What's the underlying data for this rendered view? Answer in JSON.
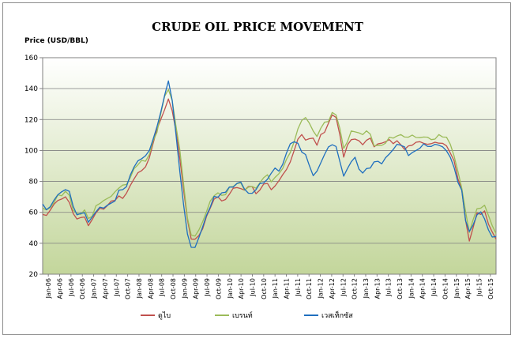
{
  "chart_data": {
    "type": "line",
    "title": "CRUDE OIL PRICE MOVEMENT",
    "ylabel": "Price (USD/BBL)",
    "xlabel": "",
    "ylim": [
      20,
      160
    ],
    "yticks": [
      20,
      40,
      60,
      80,
      100,
      120,
      140,
      160
    ],
    "grid": true,
    "legend_position": "bottom",
    "xtick_labels": [
      "Jan-06",
      "Apr-06",
      "Jul-06",
      "Oct-06",
      "Jan-07",
      "Apr-07",
      "Jul-07",
      "Oct-07",
      "Jan-08",
      "Apr-08",
      "Jul-08",
      "Oct-08",
      "Jan-09",
      "Apr-09",
      "Jul-09",
      "Oct-09",
      "Jan-10",
      "Apr-10",
      "Jul-10",
      "Oct-10",
      "Jan-11",
      "Apr-11",
      "Jul-11",
      "Oct-11",
      "Jan-12",
      "Apr-12",
      "Jul-12",
      "Oct-12",
      "Jan-13",
      "Apr-13",
      "Jul-13",
      "Oct-13",
      "Jan-14",
      "Apr-14",
      "Jul-14",
      "Oct-14",
      "Jan-15",
      "Apr-15",
      "Jul-15",
      "Oct-15"
    ],
    "x": [
      0,
      1,
      2,
      3,
      4,
      5,
      6,
      7,
      8,
      9,
      10,
      11,
      12,
      13,
      14,
      15,
      16,
      17,
      18,
      19,
      20,
      21,
      22,
      23,
      24,
      25,
      26,
      27,
      28,
      29,
      30,
      31,
      32,
      33,
      34,
      35,
      36,
      37,
      38,
      39,
      40,
      41,
      42,
      43,
      44,
      45,
      46,
      47,
      48,
      49,
      50,
      51,
      52,
      53,
      54,
      55,
      56,
      57,
      58,
      59,
      60,
      61,
      62,
      63,
      64,
      65,
      66,
      67,
      68,
      69,
      70,
      71,
      72,
      73,
      74,
      75,
      76,
      77,
      78,
      79,
      80,
      81,
      82,
      83,
      84,
      85,
      86,
      87,
      88,
      89,
      90,
      91,
      92,
      93,
      94,
      95,
      96,
      97,
      98,
      99,
      100,
      101,
      102,
      103,
      104,
      105,
      106,
      107,
      108,
      109,
      110,
      111,
      112,
      113,
      114,
      115,
      116,
      117,
      118,
      119
    ],
    "series": [
      {
        "name": "ดูไบ",
        "color": "#c0504d",
        "values": [
          58,
          58,
          62,
          65,
          68,
          68,
          70,
          67,
          59,
          56,
          56,
          57,
          52,
          55,
          60,
          62,
          62,
          65,
          67,
          68,
          70,
          69,
          73,
          77,
          82,
          85,
          87,
          90,
          95,
          105,
          113,
          120,
          127,
          133,
          126,
          112,
          95,
          75,
          55,
          43,
          42,
          45,
          50,
          57,
          63,
          68,
          70,
          68,
          68,
          72,
          75,
          76,
          76,
          74,
          77,
          76,
          72,
          75,
          78,
          79,
          74,
          77,
          81,
          84,
          88,
          92,
          100,
          108,
          110,
          107,
          107,
          108,
          104,
          110,
          112,
          117,
          123,
          122,
          110,
          96,
          103,
          107,
          108,
          106,
          104,
          106,
          108,
          103,
          104,
          105,
          105,
          107,
          105,
          106,
          104,
          100,
          103,
          104,
          105,
          106,
          104,
          104,
          105,
          105,
          105,
          104,
          103,
          99,
          93,
          82,
          74,
          55,
          42,
          50,
          60,
          58,
          61,
          53,
          47,
          43
        ]
      },
      {
        "name": "เบรนท์",
        "color": "#9bbb59",
        "values": [
          63,
          61,
          63,
          67,
          71,
          71,
          73,
          71,
          62,
          59,
          59,
          61,
          56,
          58,
          64,
          66,
          67,
          69,
          71,
          73,
          76,
          77,
          78,
          83,
          88,
          91,
          93,
          93,
          98,
          106,
          112,
          123,
          135,
          140,
          132,
          116,
          100,
          78,
          57,
          45,
          45,
          48,
          54,
          61,
          67,
          71,
          72,
          71,
          72,
          76,
          77,
          78,
          79,
          75,
          76,
          77,
          75,
          79,
          83,
          84,
          80,
          82,
          85,
          89,
          94,
          99,
          105,
          114,
          120,
          121,
          118,
          112,
          109,
          115,
          118,
          119,
          124,
          123,
          115,
          101,
          106,
          112,
          112,
          112,
          110,
          113,
          110,
          103,
          104,
          103,
          105,
          108,
          108,
          110,
          110,
          109,
          108,
          110,
          109,
          108,
          109,
          108,
          107,
          108,
          110,
          109,
          108,
          104,
          97,
          86,
          76,
          60,
          47,
          56,
          62,
          63,
          64,
          58,
          52,
          46
        ]
      },
      {
        "name": "เวสเท็กซัส",
        "color": "#1f6fbf",
        "values": [
          65,
          62,
          63,
          68,
          72,
          73,
          75,
          73,
          64,
          59,
          59,
          60,
          53,
          57,
          61,
          63,
          63,
          64,
          66,
          68,
          74,
          75,
          76,
          84,
          90,
          93,
          95,
          96,
          100,
          108,
          115,
          125,
          135,
          145,
          133,
          110,
          87,
          64,
          46,
          38,
          37,
          44,
          50,
          58,
          64,
          70,
          70,
          72,
          73,
          77,
          76,
          79,
          79,
          75,
          73,
          72,
          75,
          78,
          79,
          82,
          85,
          89,
          86,
          91,
          99,
          104,
          106,
          104,
          99,
          98,
          90,
          84,
          86,
          92,
          98,
          102,
          104,
          102,
          93,
          84,
          88,
          93,
          95,
          88,
          86,
          88,
          89,
          92,
          93,
          92,
          95,
          98,
          100,
          104,
          104,
          102,
          97,
          98,
          100,
          102,
          104,
          103,
          102,
          104,
          104,
          102,
          100,
          95,
          89,
          80,
          74,
          55,
          47,
          52,
          59,
          60,
          56,
          48,
          44,
          45
        ]
      }
    ]
  }
}
